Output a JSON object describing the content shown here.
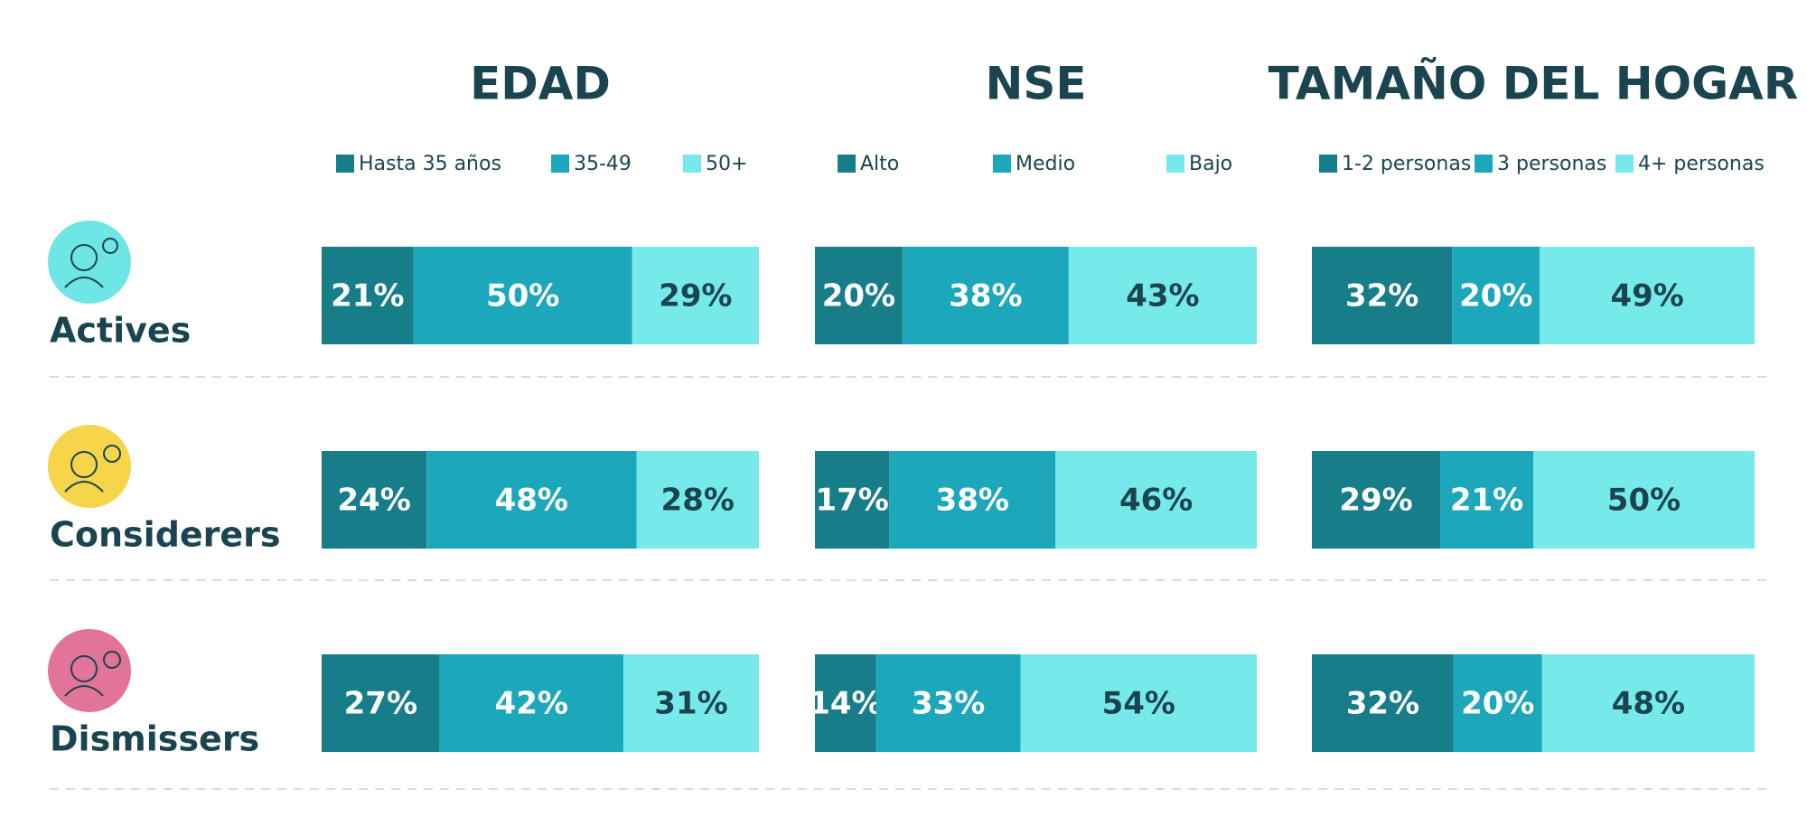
{
  "chart_data": [
    {
      "type": "bar",
      "title": "EDAD",
      "categories": [
        "Actives",
        "Considerers",
        "Dismissers"
      ],
      "series": [
        {
          "name": "Hasta 35 años",
          "color": "#167d89",
          "values": [
            21,
            24,
            27
          ],
          "value_labels": [
            "21%",
            "24%",
            "27%"
          ]
        },
        {
          "name": "35-49",
          "color": "#1ca8ba",
          "values": [
            50,
            48,
            42
          ],
          "value_labels": [
            "50%",
            "48%",
            "42%"
          ]
        },
        {
          "name": "50+",
          "color": "#76eaea",
          "values": [
            29,
            28,
            31
          ],
          "value_labels": [
            "29%",
            "28%",
            "31%"
          ]
        }
      ]
    },
    {
      "type": "bar",
      "title": "NSE",
      "series": [
        {
          "name": "Alto",
          "color": "#167d89",
          "values": [
            20,
            17,
            14
          ],
          "value_labels": [
            "20%",
            "17%",
            "14%"
          ]
        },
        {
          "name": "Medio",
          "color": "#1ca8ba",
          "values": [
            38,
            38,
            33
          ],
          "value_labels": [
            "38%",
            "38%",
            "33%"
          ]
        },
        {
          "name": "Bajo",
          "color": "#76eaea",
          "values": [
            43,
            46,
            54
          ],
          "value_labels": [
            "43%",
            "46%",
            "54%"
          ]
        }
      ]
    },
    {
      "type": "bar",
      "title": "TAMAÑO DEL HOGAR",
      "series": [
        {
          "name": "1-2 personas",
          "color": "#167d89",
          "values": [
            32,
            29,
            32
          ],
          "value_labels": [
            "32%",
            "29%",
            "32%"
          ]
        },
        {
          "name": "3 personas",
          "color": "#1ca8ba",
          "values": [
            20,
            21,
            20
          ],
          "value_labels": [
            "20%",
            "21%",
            "20%"
          ]
        },
        {
          "name": "4+ personas",
          "color": "#76eaea",
          "values": [
            49,
            50,
            48
          ],
          "value_labels": [
            "49%",
            "50%",
            "48%"
          ]
        }
      ]
    }
  ]
}
